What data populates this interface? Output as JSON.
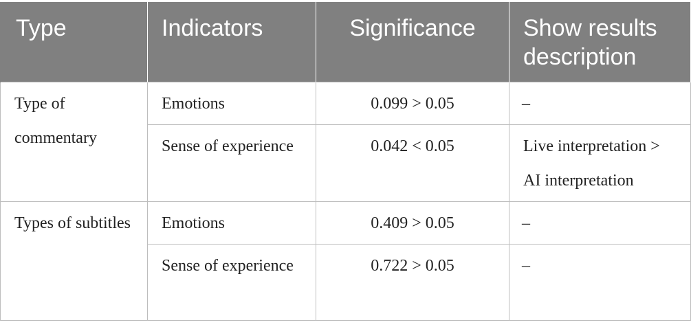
{
  "table": {
    "headers": [
      "Type",
      "Indicators",
      "Significance",
      "Show results description"
    ],
    "groups": [
      {
        "type": "Type of commentary",
        "rows": [
          {
            "indicator": "Emotions",
            "significance": "0.099 > 0.05",
            "description": "–"
          },
          {
            "indicator": "Sense of experience",
            "significance": "0.042 < 0.05",
            "description": "Live interpretation > AI interpretation"
          }
        ]
      },
      {
        "type": "Types of subtitles",
        "rows": [
          {
            "indicator": "Emotions",
            "significance": "0.409 > 0.05",
            "description": "–"
          },
          {
            "indicator": "Sense of experience",
            "significance": "0.722 > 0.05",
            "description": "–"
          }
        ]
      }
    ]
  }
}
